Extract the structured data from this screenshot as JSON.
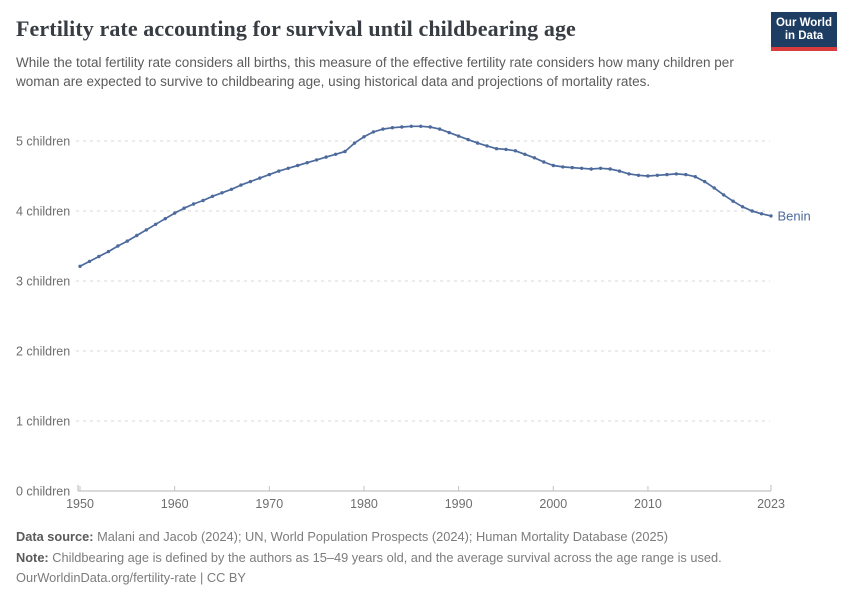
{
  "header": {
    "title": "Fertility rate accounting for survival until childbearing age",
    "subtitle": "While the total fertility rate considers all births, this measure of the effective fertility rate considers how many children per woman are expected to survive to childbearing age, using historical data and projections of mortality rates.",
    "logo": {
      "line1": "Our World",
      "line2": "in Data"
    }
  },
  "chart_data": {
    "type": "line",
    "title": "Fertility rate accounting for survival until childbearing age",
    "xlabel": "",
    "ylabel": "children",
    "xlim": [
      1950,
      2023
    ],
    "ylim": [
      0,
      5.25
    ],
    "x_start": 1950,
    "x_step": 1,
    "xticks": [
      1950,
      1960,
      1970,
      1980,
      1990,
      2000,
      2010,
      2023
    ],
    "ytick_labels": [
      "0 children",
      "1 children",
      "2 children",
      "3 children",
      "4 children",
      "5 children"
    ],
    "grid": "horizontal-dashed",
    "legend_position": "end-of-line-label",
    "line_color": "#4C6A9C",
    "series": [
      {
        "name": "Benin",
        "values": [
          3.21,
          3.28,
          3.35,
          3.42,
          3.5,
          3.57,
          3.65,
          3.73,
          3.81,
          3.89,
          3.97,
          4.04,
          4.1,
          4.15,
          4.21,
          4.26,
          4.31,
          4.37,
          4.42,
          4.47,
          4.52,
          4.57,
          4.61,
          4.65,
          4.69,
          4.73,
          4.77,
          4.81,
          4.85,
          4.97,
          5.06,
          5.13,
          5.17,
          5.19,
          5.2,
          5.21,
          5.21,
          5.2,
          5.17,
          5.12,
          5.07,
          5.02,
          4.97,
          4.93,
          4.89,
          4.88,
          4.86,
          4.81,
          4.76,
          4.7,
          4.65,
          4.63,
          4.62,
          4.61,
          4.6,
          4.61,
          4.6,
          4.57,
          4.53,
          4.51,
          4.5,
          4.51,
          4.52,
          4.53,
          4.52,
          4.49,
          4.42,
          4.33,
          4.23,
          4.14,
          4.06,
          4.0,
          3.96,
          3.93
        ]
      }
    ]
  },
  "footer": {
    "data_source_label": "Data source:",
    "data_source_text": " Malani and Jacob (2024); UN, World Population Prospects (2024); Human Mortality Database (2025)",
    "note_label": "Note:",
    "note_text": " Childbearing age is defined by the authors as 15–49 years old, and the average survival across the age range is used.",
    "url_text": "OurWorldinData.org/fertility-rate | CC BY"
  },
  "colors": {
    "line": "#4C6A9C",
    "logo_background": "#1d3d63",
    "logo_bar": "#d93c3c",
    "title_text": "#373d43",
    "subtitle_text": "#5b5b5b",
    "axis_text": "#6e6e6e",
    "gridline": "#dadada"
  }
}
